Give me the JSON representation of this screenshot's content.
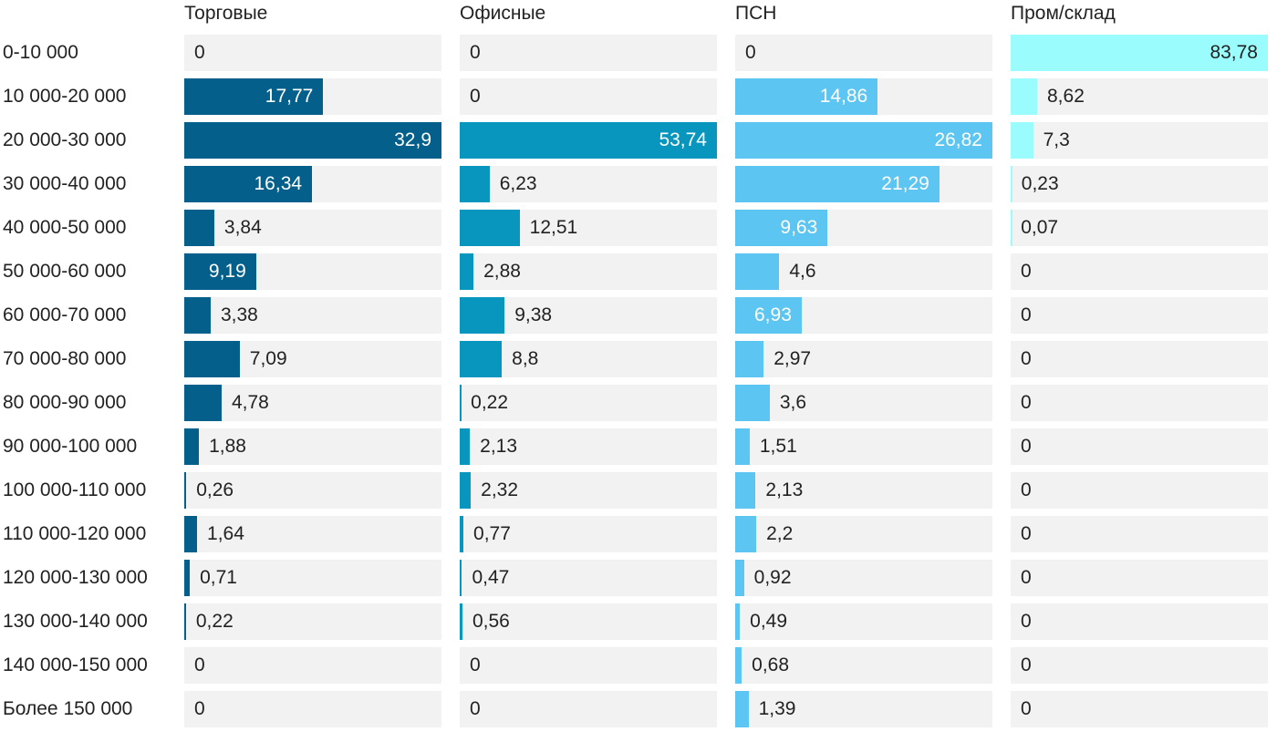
{
  "chart_data": {
    "type": "bar",
    "orientation": "horizontal",
    "layout": "small-multiples",
    "categories": [
      "0-10 000",
      "10 000-20 000",
      "20 000-30 000",
      "30 000-40 000",
      "40 000-50 000",
      "50 000-60 000",
      "60 000-70 000",
      "70 000-80 000",
      "80 000-90 000",
      "90 000-100 000",
      "100 000-110 000",
      "110 000-120 000",
      "120 000-130 000",
      "130 000-140 000",
      "140 000-150 000",
      "Более 150 000"
    ],
    "series": [
      {
        "name": "Торговые",
        "color": "#04608a",
        "values": [
          0,
          17.77,
          32.9,
          16.34,
          3.84,
          9.19,
          3.38,
          7.09,
          4.78,
          1.88,
          0.26,
          1.64,
          0.71,
          0.22,
          0,
          0
        ],
        "labels": [
          "0",
          "17,77",
          "32,9",
          "16,34",
          "3,84",
          "9,19",
          "3,38",
          "7,09",
          "4,78",
          "1,88",
          "0,26",
          "1,64",
          "0,71",
          "0,22",
          "0",
          "0"
        ]
      },
      {
        "name": "Офисные",
        "color": "#0895be",
        "values": [
          0,
          0,
          53.74,
          6.23,
          12.51,
          2.88,
          9.38,
          8.8,
          0.22,
          2.13,
          2.32,
          0.77,
          0.47,
          0.56,
          0,
          0
        ],
        "labels": [
          "0",
          "0",
          "53,74",
          "6,23",
          "12,51",
          "2,88",
          "9,38",
          "8,8",
          "0,22",
          "2,13",
          "2,32",
          "0,77",
          "0,47",
          "0,56",
          "0",
          "0"
        ]
      },
      {
        "name": "ПСН",
        "color": "#5cc5f1",
        "values": [
          0,
          14.86,
          26.82,
          21.29,
          9.63,
          4.6,
          6.93,
          2.97,
          3.6,
          1.51,
          2.13,
          2.2,
          0.92,
          0.49,
          0.68,
          1.39
        ],
        "labels": [
          "0",
          "14,86",
          "26,82",
          "21,29",
          "9,63",
          "4,6",
          "6,93",
          "2,97",
          "3,6",
          "1,51",
          "2,13",
          "2,2",
          "0,92",
          "0,49",
          "0,68",
          "1,39"
        ]
      },
      {
        "name": "Пром/склад",
        "color": "#9bfcfd",
        "values": [
          83.78,
          8.62,
          7.3,
          0.23,
          0.07,
          0,
          0,
          0,
          0,
          0,
          0,
          0,
          0,
          0,
          0,
          0
        ],
        "labels": [
          "83,78",
          "8,62",
          "7,3",
          "0,23",
          "0,07",
          "0",
          "0",
          "0",
          "0",
          "0",
          "0",
          "0",
          "0",
          "0",
          "0",
          "0"
        ]
      }
    ],
    "title": "",
    "xlabel": "",
    "ylabel": "",
    "grid": false,
    "legend": "none"
  }
}
